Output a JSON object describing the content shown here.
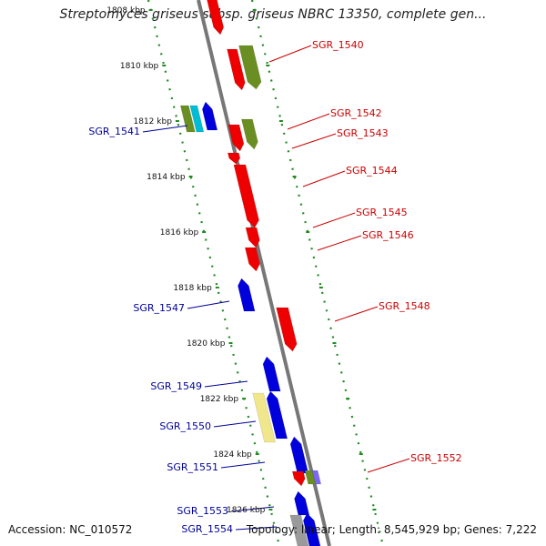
{
  "title": "Streptomyces griseus subsp. griseus NBRC 13350, complete gen...",
  "footer": {
    "accession": "Accession: NC_010572",
    "summary": "Topology: linear; Length: 8,545,929 bp; Genes: 7,222"
  },
  "colors": {
    "forward_strand": "#ee0000",
    "reverse_strand": "#0000dd",
    "other_a": "#6b8e23",
    "other_b": "#00bcd4",
    "other_c": "#f0e68c",
    "other_d": "#7b68ee",
    "axis": "#777777",
    "scale_dots": "#228b22",
    "forward_label": "#cc0000",
    "reverse_label": "#000099"
  },
  "ruler": [
    "1808 kbp",
    "1810 kbp",
    "1812 kbp",
    "1814 kbp",
    "1816 kbp",
    "1818 kbp",
    "1820 kbp",
    "1822 kbp",
    "1824 kbp",
    "1826 kbp"
  ],
  "genes": [
    {
      "label": "SGR_1540",
      "strand": "forward"
    },
    {
      "label": "SGR_1541",
      "strand": "reverse"
    },
    {
      "label": "SGR_1542",
      "strand": "forward"
    },
    {
      "label": "SGR_1543",
      "strand": "forward"
    },
    {
      "label": "SGR_1544",
      "strand": "forward"
    },
    {
      "label": "SGR_1545",
      "strand": "forward"
    },
    {
      "label": "SGR_1546",
      "strand": "forward"
    },
    {
      "label": "SGR_1547",
      "strand": "reverse"
    },
    {
      "label": "SGR_1548",
      "strand": "forward"
    },
    {
      "label": "SGR_1549",
      "strand": "reverse"
    },
    {
      "label": "SGR_1550",
      "strand": "reverse"
    },
    {
      "label": "SGR_1551",
      "strand": "reverse"
    },
    {
      "label": "SGR_1552",
      "strand": "forward"
    },
    {
      "label": "SGR_1553",
      "strand": "reverse"
    },
    {
      "label": "SGR_1554",
      "strand": "reverse"
    }
  ]
}
